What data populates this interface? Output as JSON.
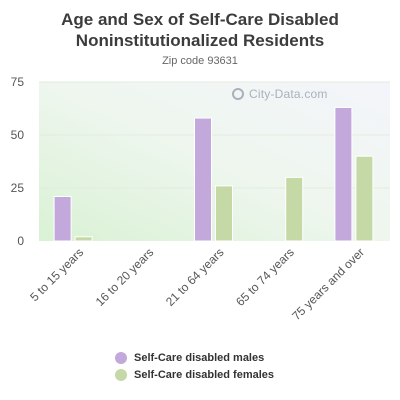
{
  "title_line1": "Age and Sex of Self-Care Disabled",
  "title_line2": "Noninstitutionalized Residents",
  "subtitle": "Zip code 93631",
  "watermark": "City-Data.com",
  "colors": {
    "males": "#c3a8db",
    "females": "#c4d9a6"
  },
  "legend": {
    "males": "Self-Care disabled males",
    "females": "Self-Care disabled females"
  },
  "chart_data": {
    "type": "bar",
    "title": "Age and Sex of Self-Care Disabled Noninstitutionalized Residents",
    "subtitle": "Zip code 93631",
    "categories": [
      "5 to 15 years",
      "16 to 20 years",
      "21 to 64 years",
      "65 to 74 years",
      "75 years and over"
    ],
    "series": [
      {
        "name": "Self-Care disabled males",
        "values": [
          21,
          0,
          58,
          0,
          63
        ]
      },
      {
        "name": "Self-Care disabled females",
        "values": [
          2,
          0,
          26,
          30,
          40
        ]
      }
    ],
    "yticks": [
      0,
      25,
      50,
      75
    ],
    "ylim": [
      0,
      75
    ],
    "legend_position": "bottom"
  }
}
